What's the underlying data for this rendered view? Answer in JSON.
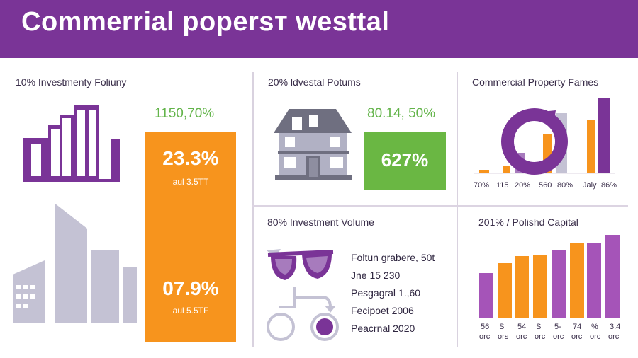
{
  "header": {
    "title": "Commerrial popersт westtal"
  },
  "colors": {
    "purple": "#7a3497",
    "orange": "#f7941d",
    "green": "#6ab743",
    "gray": "#c4c2d4"
  },
  "panel1": {
    "title": "10% Investmenty Foliuny",
    "green_value": "1150,70%",
    "box_top_value": "23.3%",
    "box_top_sub": "aul 3.5TT",
    "box_bottom_value": "07.9%",
    "box_bottom_sub": "aul 5.5TF",
    "icons": [
      "bar-chart-icon",
      "buildings-icon"
    ]
  },
  "panel2": {
    "title": "20% ldvestal Potums",
    "green_value": "80.14, 50%",
    "box_value": "627%",
    "icons": [
      "house-icon"
    ]
  },
  "panel3": {
    "title": "Commercial Property Fames",
    "x_labels": [
      "70%",
      "115",
      "20%",
      "560",
      "80%",
      "Jaly",
      "86%"
    ],
    "icons": [
      "ring-icon"
    ]
  },
  "panel4": {
    "title": "80% Investment Volume",
    "items": [
      "Foltun grabere, 50t",
      "Jne 15 230",
      "Pesgagral 1.,60",
      "Fecipoet 2006",
      "Peacrnal 2020"
    ],
    "icons": [
      "glasses-icon",
      "flow-icon"
    ]
  },
  "panel5": {
    "title": "201% / Polishd Capital",
    "x_labels_top": [
      "56",
      "S",
      "54",
      "S",
      "5-",
      "74",
      "%",
      "3.4"
    ],
    "x_labels_bottom": [
      "orc",
      "ors",
      "orc",
      "orc",
      "orc",
      "orc",
      "orc",
      "orc"
    ]
  }
}
